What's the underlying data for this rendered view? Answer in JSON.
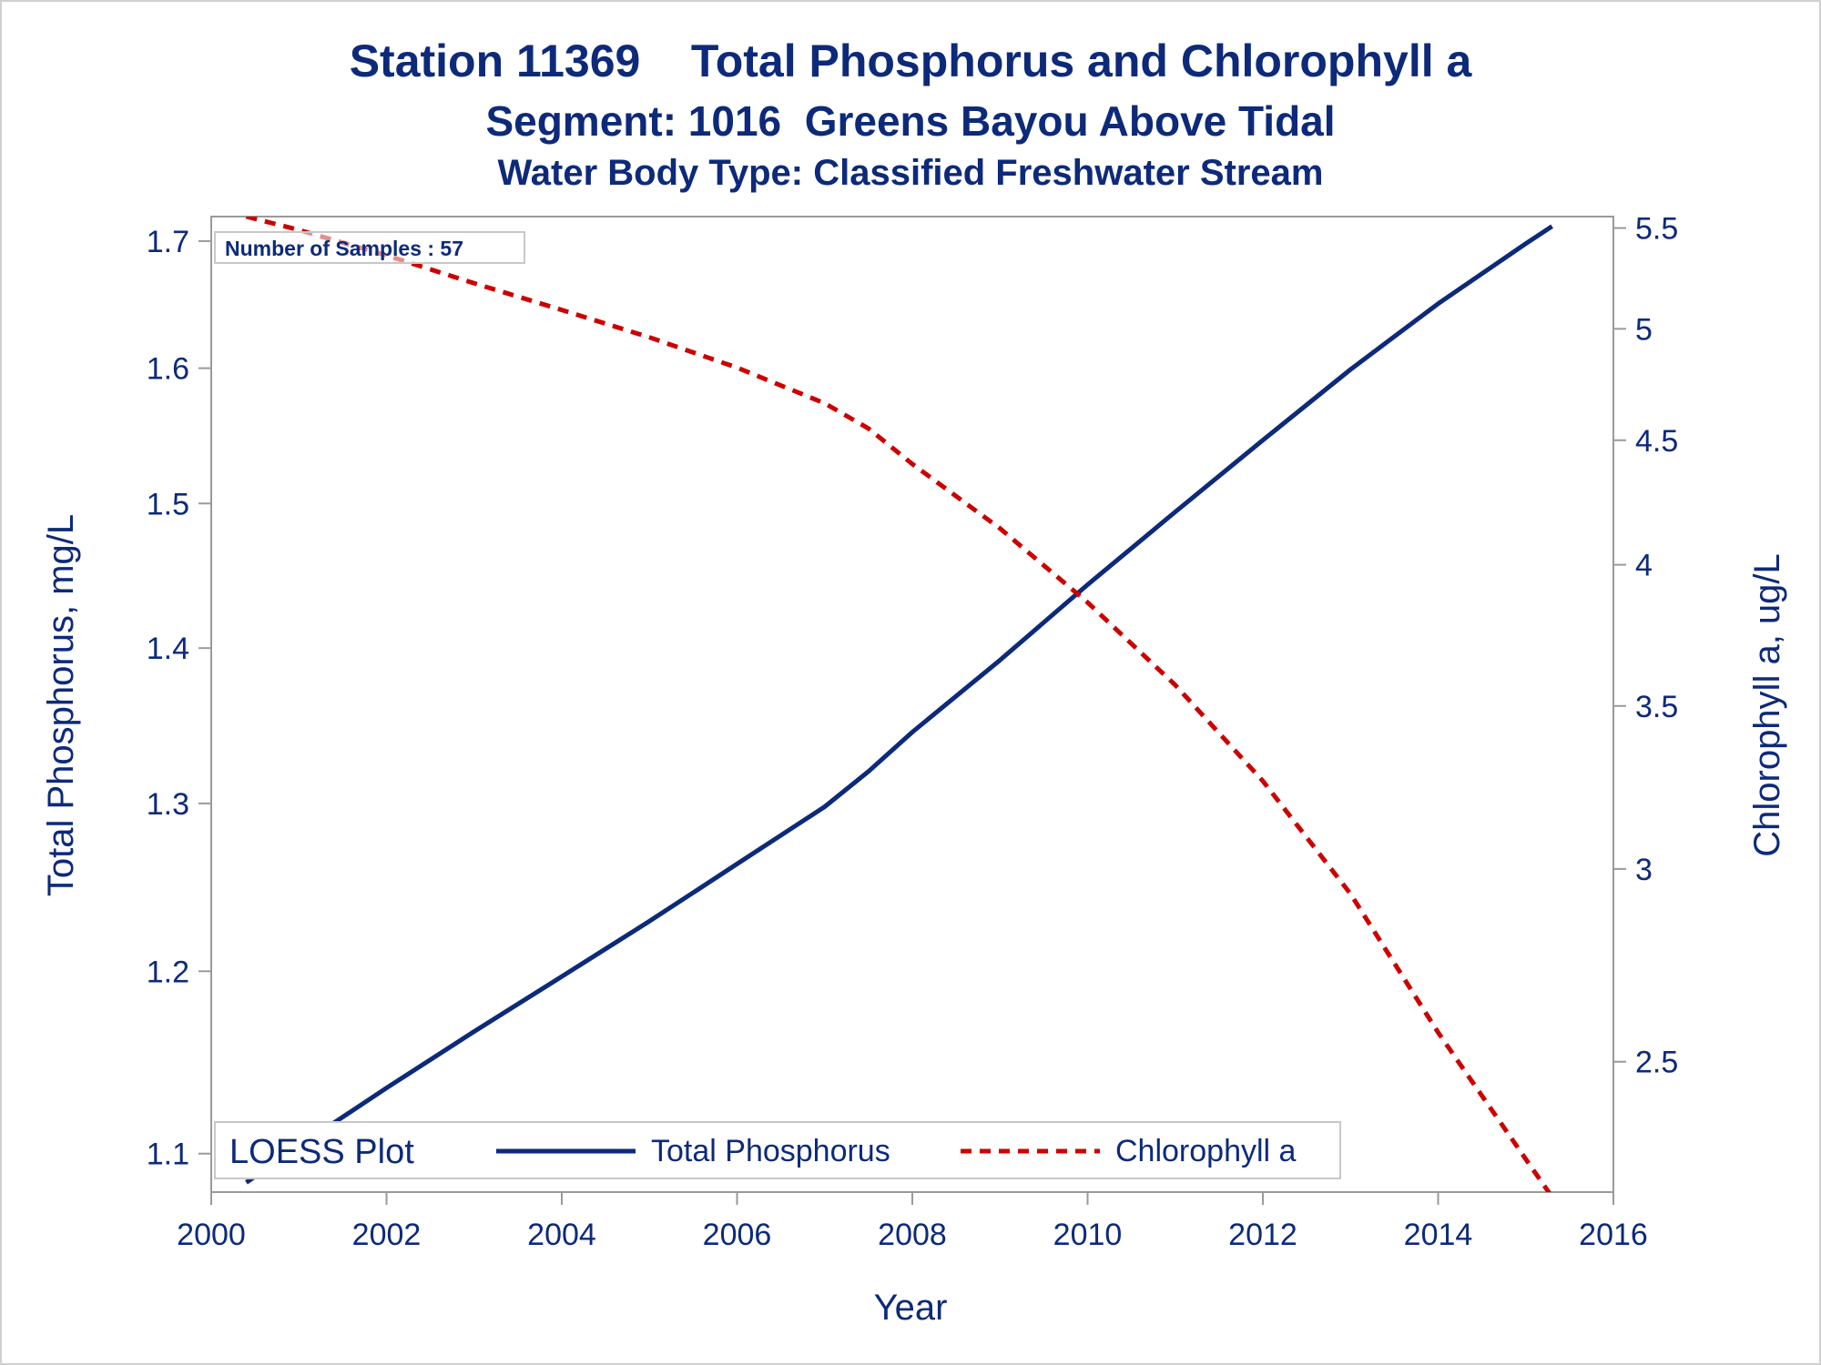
{
  "title": "Station 11369    Total Phosphorus and Chlorophyll a",
  "subtitle": "Segment: 1016  Greens Bayou Above Tidal",
  "subtitle2": "Water Body Type: Classified Freshwater Stream",
  "colors": {
    "text": "#0d2a7a",
    "phosphorus": "#0d2a7a",
    "chlorophyll": "#cc0000",
    "axis": "#9a9a9a"
  },
  "chart_data": {
    "type": "line",
    "xlabel": "Year",
    "ylabel": "Total Phosphorus, mg/L",
    "y2label": "Chlorophyll a, ug/L",
    "xlim": [
      2000,
      2016
    ],
    "ylim": [
      1.08,
      1.72
    ],
    "y2lim": [
      2.21,
      5.56
    ],
    "y_scale": "log",
    "y2_scale": "log",
    "x_ticks": [
      2000,
      2002,
      2004,
      2006,
      2008,
      2010,
      2012,
      2014,
      2016
    ],
    "y_ticks": [
      1.1,
      1.2,
      1.3,
      1.4,
      1.5,
      1.6,
      1.7
    ],
    "y2_ticks": [
      2.5,
      3,
      3.5,
      4,
      4.5,
      5,
      5.5
    ],
    "annotation": "Number of Samples : 57",
    "legend": {
      "title": "LOESS Plot",
      "placement": "bottom-left"
    },
    "series": [
      {
        "name": "Total Phosphorus",
        "axis": "left",
        "style": "solid",
        "x": [
          2000.4,
          2001,
          2002,
          2003,
          2004,
          2005,
          2006,
          2007,
          2007.5,
          2008,
          2009,
          2010,
          2011,
          2012,
          2013,
          2014,
          2015,
          2015.3
        ],
        "y": [
          1.085,
          1.104,
          1.135,
          1.166,
          1.197,
          1.229,
          1.263,
          1.298,
          1.32,
          1.345,
          1.392,
          1.443,
          1.494,
          1.546,
          1.599,
          1.65,
          1.698,
          1.712
        ]
      },
      {
        "name": "Chlorophyll a",
        "axis": "right",
        "style": "dashed",
        "x": [
          2000.4,
          2001,
          2002,
          2003,
          2004,
          2005,
          2006,
          2007,
          2007.5,
          2008,
          2009,
          2010,
          2011,
          2012,
          2013,
          2014,
          2015,
          2015.3
        ],
        "y": [
          5.56,
          5.49,
          5.36,
          5.22,
          5.09,
          4.96,
          4.82,
          4.66,
          4.55,
          4.4,
          4.14,
          3.86,
          3.57,
          3.26,
          2.93,
          2.57,
          2.28,
          2.2
        ]
      }
    ]
  }
}
